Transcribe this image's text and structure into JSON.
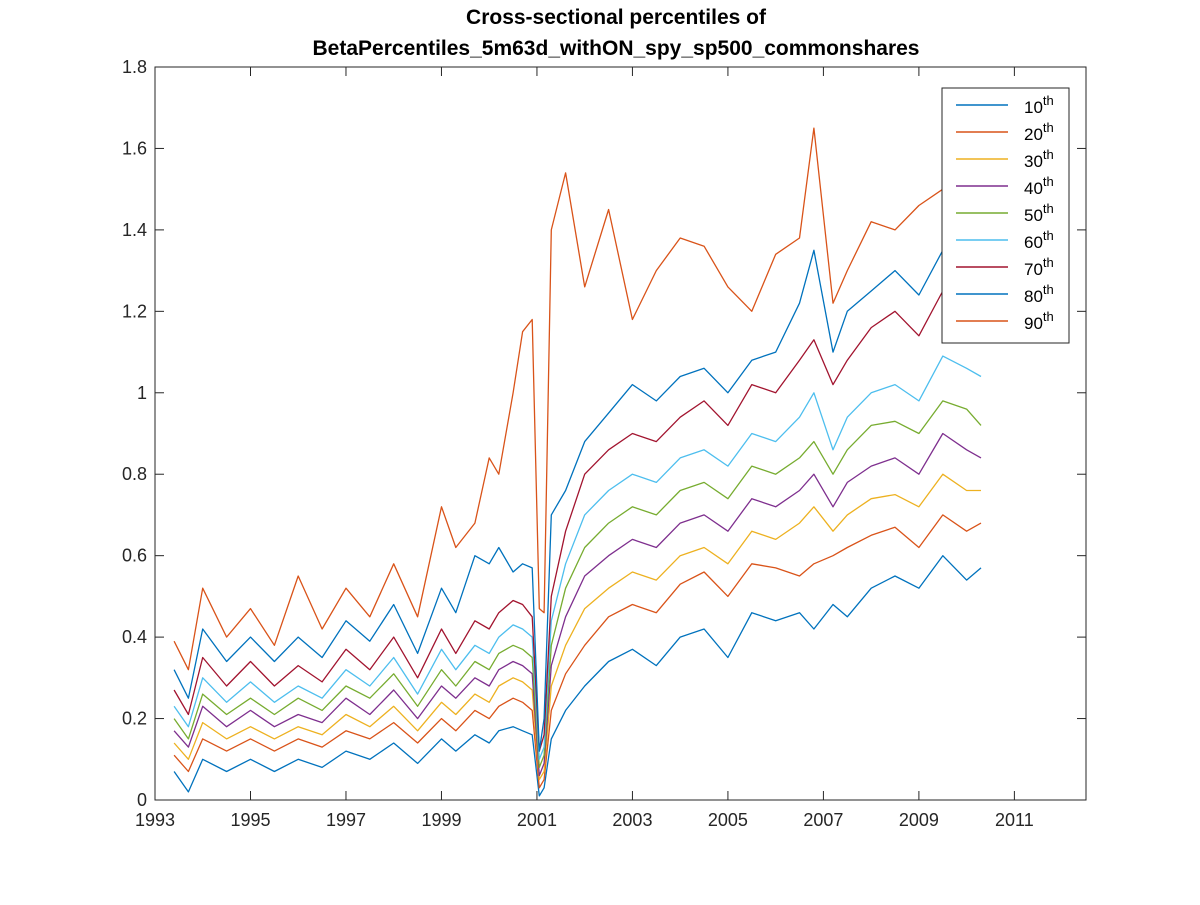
{
  "chart_data": {
    "type": "line",
    "title_line1": "Cross-sectional percentiles of",
    "title_line2": "BetaPercentiles_5m63d_withON_spy_sp500_commonshares",
    "xlabel": "",
    "ylabel": "",
    "xlim": [
      1993,
      2012.5
    ],
    "ylim": [
      0,
      1.8
    ],
    "xticks": [
      1993,
      1995,
      1997,
      1999,
      2001,
      2003,
      2005,
      2007,
      2009,
      2011
    ],
    "yticks": [
      0,
      0.2,
      0.4,
      0.6,
      0.8,
      1,
      1.2,
      1.4,
      1.6,
      1.8
    ],
    "ytick_labels": [
      "0",
      "0.2",
      "0.4",
      "0.6",
      "0.8",
      "1",
      "1.2",
      "1.4",
      "1.6",
      "1.8"
    ],
    "grid": false,
    "legend_position": "top-right",
    "x": [
      1993.4,
      1993.7,
      1994.0,
      1994.5,
      1995.0,
      1995.5,
      1996.0,
      1996.5,
      1997.0,
      1997.5,
      1998.0,
      1998.5,
      1999.0,
      1999.3,
      1999.7,
      2000.0,
      2000.2,
      2000.5,
      2000.7,
      2000.9,
      2001.05,
      2001.15,
      2001.3,
      2001.6,
      2002.0,
      2002.5,
      2003.0,
      2003.5,
      2004.0,
      2004.5,
      2005.0,
      2005.5,
      2006.0,
      2006.5,
      2006.8,
      2007.2,
      2007.5,
      2008.0,
      2008.5,
      2009.0,
      2009.5,
      2010.0,
      2010.3
    ],
    "series": [
      {
        "name": "10",
        "color": "#0072BD",
        "values": [
          0.07,
          0.02,
          0.1,
          0.07,
          0.1,
          0.07,
          0.1,
          0.08,
          0.12,
          0.1,
          0.14,
          0.09,
          0.15,
          0.12,
          0.16,
          0.14,
          0.17,
          0.18,
          0.17,
          0.16,
          0.01,
          0.03,
          0.15,
          0.22,
          0.28,
          0.34,
          0.37,
          0.33,
          0.4,
          0.42,
          0.35,
          0.46,
          0.44,
          0.46,
          0.42,
          0.48,
          0.45,
          0.52,
          0.55,
          0.52,
          0.6,
          0.54,
          0.57
        ]
      },
      {
        "name": "20",
        "color": "#D95319",
        "values": [
          0.11,
          0.07,
          0.15,
          0.12,
          0.15,
          0.12,
          0.15,
          0.13,
          0.17,
          0.15,
          0.19,
          0.14,
          0.2,
          0.17,
          0.22,
          0.2,
          0.23,
          0.25,
          0.24,
          0.22,
          0.03,
          0.05,
          0.22,
          0.31,
          0.38,
          0.45,
          0.48,
          0.46,
          0.53,
          0.56,
          0.5,
          0.58,
          0.57,
          0.55,
          0.58,
          0.6,
          0.62,
          0.65,
          0.67,
          0.62,
          0.7,
          0.66,
          0.68
        ]
      },
      {
        "name": "30",
        "color": "#EDB120",
        "values": [
          0.14,
          0.1,
          0.19,
          0.15,
          0.18,
          0.15,
          0.18,
          0.16,
          0.21,
          0.18,
          0.23,
          0.17,
          0.24,
          0.21,
          0.26,
          0.24,
          0.28,
          0.3,
          0.29,
          0.27,
          0.05,
          0.07,
          0.28,
          0.38,
          0.47,
          0.52,
          0.56,
          0.54,
          0.6,
          0.62,
          0.58,
          0.66,
          0.64,
          0.68,
          0.72,
          0.66,
          0.7,
          0.74,
          0.75,
          0.72,
          0.8,
          0.76,
          0.76
        ]
      },
      {
        "name": "40",
        "color": "#7E2F8E",
        "values": [
          0.17,
          0.13,
          0.23,
          0.18,
          0.22,
          0.18,
          0.21,
          0.19,
          0.25,
          0.21,
          0.27,
          0.2,
          0.28,
          0.25,
          0.3,
          0.28,
          0.32,
          0.34,
          0.33,
          0.31,
          0.06,
          0.09,
          0.33,
          0.45,
          0.55,
          0.6,
          0.64,
          0.62,
          0.68,
          0.7,
          0.66,
          0.74,
          0.72,
          0.76,
          0.8,
          0.72,
          0.78,
          0.82,
          0.84,
          0.8,
          0.9,
          0.86,
          0.84
        ]
      },
      {
        "name": "50",
        "color": "#77AC30",
        "values": [
          0.2,
          0.15,
          0.26,
          0.21,
          0.25,
          0.21,
          0.25,
          0.22,
          0.28,
          0.25,
          0.31,
          0.23,
          0.32,
          0.28,
          0.34,
          0.32,
          0.36,
          0.38,
          0.37,
          0.35,
          0.08,
          0.11,
          0.38,
          0.52,
          0.62,
          0.68,
          0.72,
          0.7,
          0.76,
          0.78,
          0.74,
          0.82,
          0.8,
          0.84,
          0.88,
          0.8,
          0.86,
          0.92,
          0.93,
          0.9,
          0.98,
          0.96,
          0.92
        ]
      },
      {
        "name": "60",
        "color": "#4DBEEE",
        "values": [
          0.23,
          0.18,
          0.3,
          0.24,
          0.29,
          0.24,
          0.28,
          0.25,
          0.32,
          0.28,
          0.35,
          0.26,
          0.37,
          0.32,
          0.38,
          0.36,
          0.4,
          0.43,
          0.42,
          0.4,
          0.1,
          0.13,
          0.44,
          0.58,
          0.7,
          0.76,
          0.8,
          0.78,
          0.84,
          0.86,
          0.82,
          0.9,
          0.88,
          0.94,
          1.0,
          0.86,
          0.94,
          1.0,
          1.02,
          0.98,
          1.09,
          1.06,
          1.04
        ]
      },
      {
        "name": "70",
        "color": "#A2142F",
        "values": [
          0.27,
          0.21,
          0.35,
          0.28,
          0.34,
          0.28,
          0.33,
          0.29,
          0.37,
          0.32,
          0.4,
          0.3,
          0.42,
          0.36,
          0.44,
          0.42,
          0.46,
          0.49,
          0.48,
          0.45,
          0.12,
          0.16,
          0.5,
          0.66,
          0.8,
          0.86,
          0.9,
          0.88,
          0.94,
          0.98,
          0.92,
          1.02,
          1.0,
          1.08,
          1.13,
          1.02,
          1.08,
          1.16,
          1.2,
          1.14,
          1.25,
          1.2,
          1.22
        ]
      },
      {
        "name": "80",
        "color": "#0072BD",
        "values": [
          0.32,
          0.25,
          0.42,
          0.34,
          0.4,
          0.34,
          0.4,
          0.35,
          0.44,
          0.39,
          0.48,
          0.36,
          0.52,
          0.46,
          0.6,
          0.58,
          0.62,
          0.56,
          0.58,
          0.57,
          0.12,
          0.2,
          0.7,
          0.76,
          0.88,
          0.95,
          1.02,
          0.98,
          1.04,
          1.06,
          1.0,
          1.08,
          1.1,
          1.22,
          1.35,
          1.1,
          1.2,
          1.25,
          1.3,
          1.24,
          1.35,
          1.3,
          1.32
        ]
      },
      {
        "name": "90",
        "color": "#D95319",
        "values": [
          0.39,
          0.32,
          0.52,
          0.4,
          0.47,
          0.38,
          0.55,
          0.42,
          0.52,
          0.45,
          0.58,
          0.45,
          0.72,
          0.62,
          0.68,
          0.84,
          0.8,
          1.0,
          1.15,
          1.18,
          0.47,
          0.46,
          1.4,
          1.54,
          1.26,
          1.45,
          1.18,
          1.3,
          1.38,
          1.36,
          1.26,
          1.2,
          1.34,
          1.38,
          1.65,
          1.22,
          1.3,
          1.42,
          1.4,
          1.46,
          1.5,
          1.54,
          1.52
        ]
      }
    ]
  }
}
